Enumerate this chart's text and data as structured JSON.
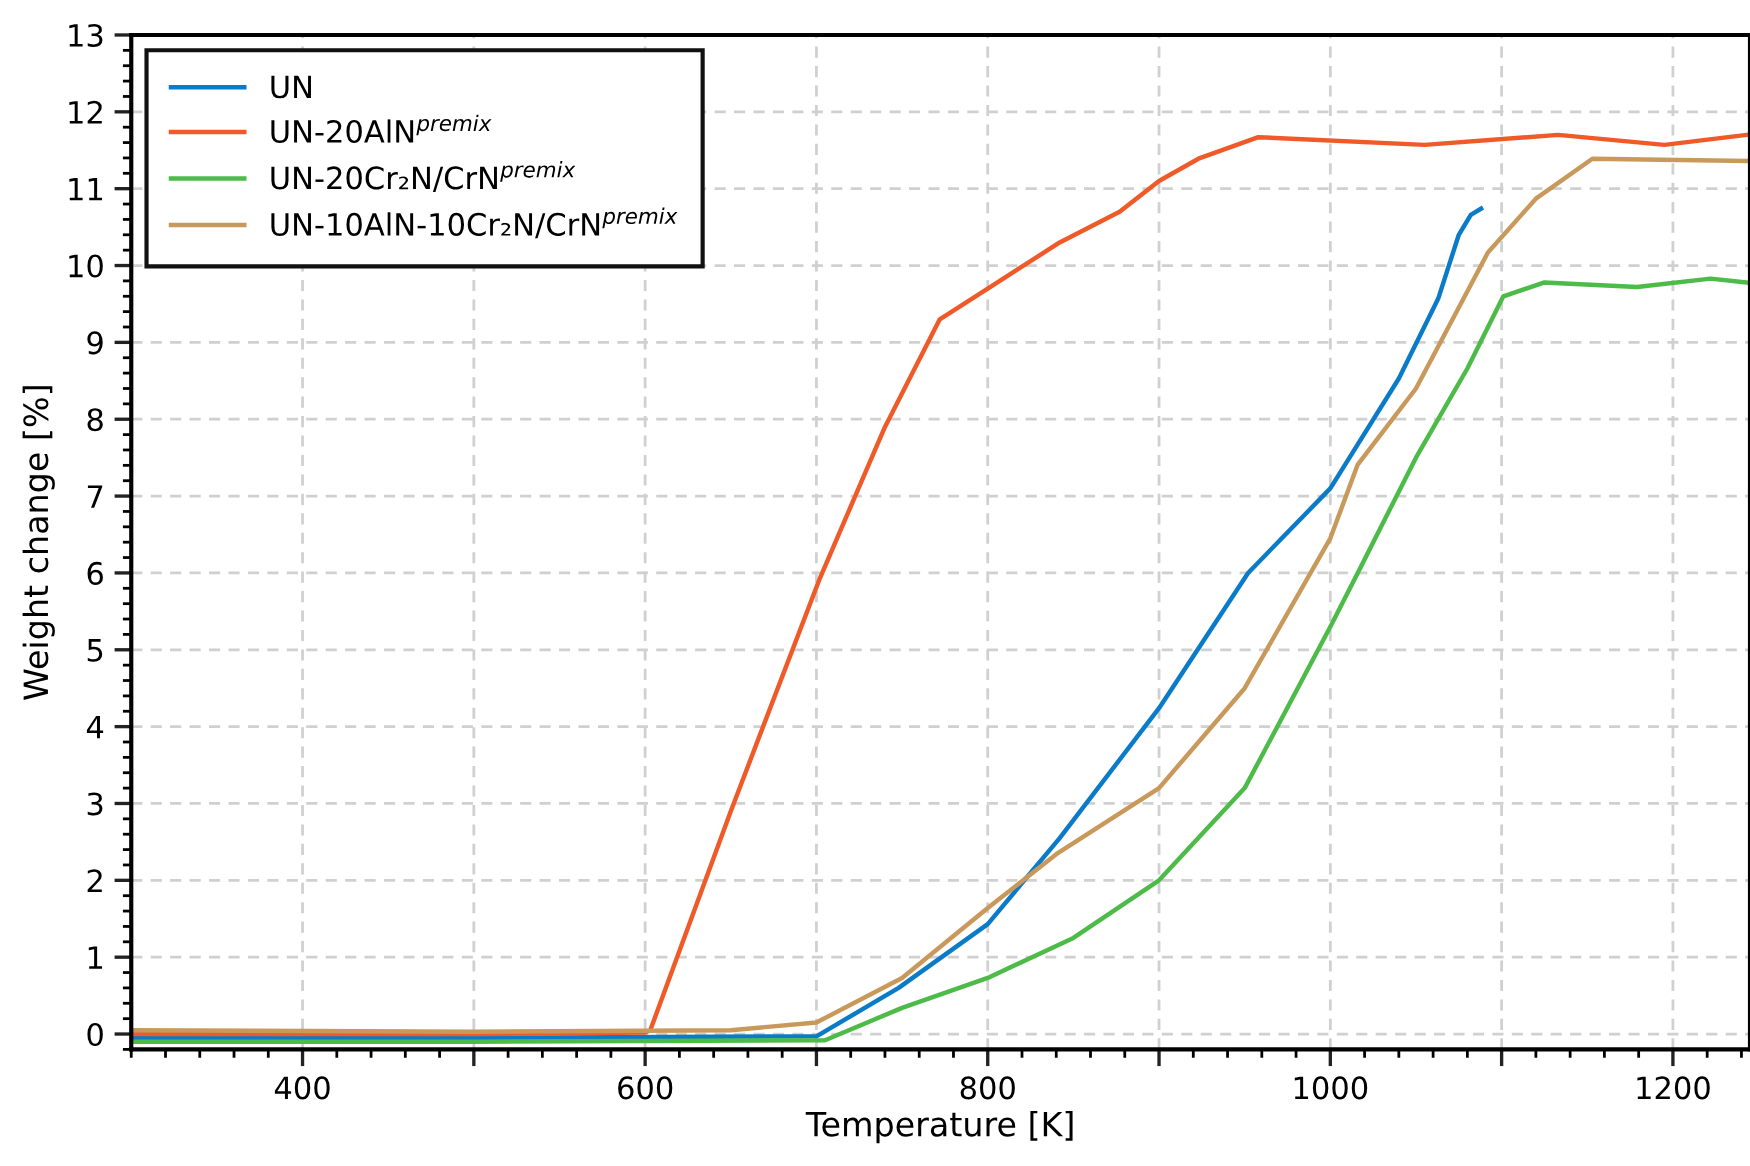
{
  "chart_data": {
    "type": "line",
    "xlabel": "Temperature [K]",
    "ylabel": "Weight change [%]",
    "xlim": [
      300,
      1245
    ],
    "ylim": [
      -0.2,
      13
    ],
    "xticks": [
      400,
      {
        "value": 500,
        "label": null
      },
      600,
      {
        "value": 700,
        "label": null
      },
      800,
      {
        "value": 900,
        "label": null
      },
      1000,
      {
        "value": 1100,
        "label": null
      },
      1200
    ],
    "yticks": [
      0,
      1,
      2,
      3,
      4,
      5,
      6,
      7,
      8,
      9,
      10,
      11,
      12,
      13
    ],
    "grid": true,
    "legend": "top left",
    "line_style": "solid",
    "marker": "none",
    "series": [
      {
        "name": "UN",
        "color": "#0a7bc8",
        "x": [
          300,
          500,
          700,
          748,
          800,
          842,
          900,
          952,
          1000,
          1040,
          1063,
          1075,
          1082,
          1088
        ],
        "values": [
          -0.05,
          -0.05,
          -0.03,
          0.6,
          1.43,
          2.55,
          4.24,
          6.0,
          7.1,
          8.53,
          9.57,
          10.4,
          10.66,
          10.74
        ]
      },
      {
        "name": "UN-20AlN$^{premix}$",
        "color": "#f05a28",
        "x": [
          300,
          500,
          600,
          603,
          650,
          702,
          740,
          772,
          800,
          842,
          877,
          900,
          923,
          958,
          1055,
          1133,
          1195,
          1243
        ],
        "values": [
          0.0,
          0.0,
          0.02,
          0.05,
          2.9,
          5.93,
          7.9,
          9.3,
          9.7,
          10.3,
          10.7,
          11.1,
          11.39,
          11.67,
          11.57,
          11.7,
          11.57,
          11.7
        ]
      },
      {
        "name": "UN-20Cr₂N/CrN$^{premix}$",
        "color": "#4dbb48",
        "x": [
          300,
          500,
          705,
          750,
          800,
          850,
          900,
          950,
          1000,
          1016,
          1050,
          1080,
          1101,
          1125,
          1179,
          1222,
          1243
        ],
        "values": [
          -0.1,
          -0.1,
          -0.08,
          0.34,
          0.73,
          1.25,
          2.0,
          3.2,
          5.3,
          6.0,
          7.5,
          8.66,
          9.6,
          9.78,
          9.72,
          9.83,
          9.78
        ]
      },
      {
        "name": "UN-10AlN-10Cr₂N/CrN$^{premix}$",
        "color": "#c8995a",
        "x": [
          300,
          500,
          650,
          700,
          750,
          800,
          840,
          900,
          950,
          1000,
          1016,
          1050,
          1092,
          1120,
          1153,
          1243
        ],
        "values": [
          0.05,
          0.03,
          0.05,
          0.15,
          0.73,
          1.64,
          2.34,
          3.2,
          4.5,
          6.45,
          7.41,
          8.4,
          10.17,
          10.87,
          11.39,
          11.36
        ]
      }
    ]
  }
}
